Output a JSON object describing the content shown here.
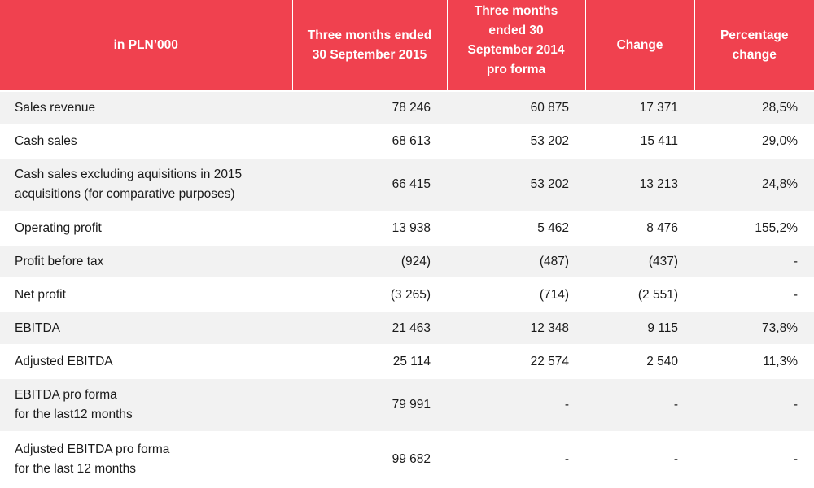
{
  "table": {
    "headers": [
      {
        "lines": [
          "in PLN’000"
        ]
      },
      {
        "lines": [
          "Three months ended",
          "30 September 2015"
        ]
      },
      {
        "lines": [
          "Three months",
          "ended 30",
          "September 2014",
          "pro forma"
        ]
      },
      {
        "lines": [
          "Change"
        ]
      },
      {
        "lines": [
          "Percentage",
          "change"
        ]
      }
    ],
    "rows": [
      {
        "label": [
          "Sales revenue"
        ],
        "v2015": "78 246",
        "v2014": "60 875",
        "change": "17 371",
        "pct": "28,5%"
      },
      {
        "label": [
          "Cash sales"
        ],
        "v2015": "68 613",
        "v2014": "53 202",
        "change": "15 411",
        "pct": "29,0%"
      },
      {
        "label": [
          "Cash sales excluding aquisitions in 2015",
          "acquisitions (for comparative purposes)"
        ],
        "v2015": "66 415",
        "v2014": "53 202",
        "change": "13 213",
        "pct": "24,8%"
      },
      {
        "label": [
          "Operating profit"
        ],
        "v2015": "13 938",
        "v2014": "5 462",
        "change": "8 476",
        "pct": "155,2%"
      },
      {
        "label": [
          "Profit before tax"
        ],
        "v2015": "(924)",
        "v2014": "(487)",
        "change": "(437)",
        "pct": "-"
      },
      {
        "label": [
          "Net profit"
        ],
        "v2015": "(3 265)",
        "v2014": "(714)",
        "change": "(2 551)",
        "pct": "-"
      },
      {
        "label": [
          "EBITDA"
        ],
        "v2015": "21 463",
        "v2014": "12 348",
        "change": "9 115",
        "pct": "73,8%"
      },
      {
        "label": [
          "Adjusted EBITDA"
        ],
        "v2015": "25 114",
        "v2014": "22 574",
        "change": "2 540",
        "pct": "11,3%"
      },
      {
        "label": [
          "EBITDA pro forma",
          "for the last12 months"
        ],
        "v2015": "79 991",
        "v2014": "-",
        "change": "-",
        "pct": "-"
      },
      {
        "label": [
          "Adjusted EBITDA pro forma",
          "for the last 12 months"
        ],
        "v2015": "99 682",
        "v2014": "-",
        "change": "-",
        "pct": "-"
      }
    ]
  }
}
